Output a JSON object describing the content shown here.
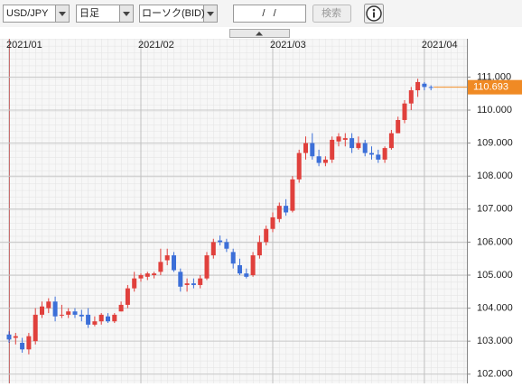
{
  "toolbar": {
    "pair": "USD/JPY",
    "period": "日足",
    "chart_kind": "ローソク(BID)",
    "date": "/   /",
    "search": "検索"
  },
  "chart_data": {
    "type": "candlestick",
    "categories": [
      "2021/01",
      null,
      null,
      null,
      null,
      null,
      null,
      null,
      null,
      null,
      null,
      null,
      null,
      null,
      null,
      null,
      null,
      null,
      null,
      null,
      "2021/02",
      null,
      null,
      null,
      null,
      null,
      null,
      null,
      null,
      null,
      null,
      null,
      null,
      null,
      null,
      null,
      null,
      null,
      null,
      null,
      "2021/03",
      null,
      null,
      null,
      null,
      null,
      null,
      null,
      null,
      null,
      null,
      null,
      null,
      null,
      null,
      null,
      null,
      null,
      null,
      null,
      null,
      null,
      null,
      "2021/04",
      null
    ],
    "open": [
      103.2,
      103.1,
      102.95,
      102.75,
      103.0,
      103.8,
      104.0,
      104.2,
      103.8,
      103.8,
      103.9,
      103.8,
      103.8,
      103.5,
      103.6,
      103.75,
      103.6,
      103.9,
      104.1,
      104.6,
      104.9,
      104.95,
      105.0,
      105.1,
      105.45,
      105.6,
      105.1,
      104.7,
      104.75,
      104.7,
      104.9,
      105.6,
      106.05,
      106.0,
      105.7,
      105.3,
      105.05,
      105.0,
      105.6,
      106.0,
      106.4,
      106.7,
      107.1,
      106.95,
      107.9,
      108.7,
      109.0,
      108.6,
      108.4,
      108.5,
      109.05,
      109.1,
      109.15,
      108.85,
      109.0,
      108.7,
      108.65,
      108.5,
      108.85,
      109.3,
      109.7,
      110.2,
      110.6,
      110.8,
      110.7
    ],
    "high": [
      103.3,
      103.25,
      103.1,
      103.25,
      104.0,
      104.2,
      104.3,
      104.35,
      104.1,
      104.0,
      104.0,
      103.95,
      104.0,
      103.75,
      103.85,
      103.85,
      103.85,
      104.2,
      104.7,
      105.1,
      105.05,
      105.1,
      105.1,
      105.8,
      105.8,
      105.7,
      105.2,
      104.9,
      104.9,
      105.0,
      105.7,
      106.1,
      106.2,
      106.1,
      105.8,
      105.5,
      105.2,
      105.7,
      106.2,
      106.5,
      106.9,
      107.2,
      107.3,
      108.0,
      108.8,
      109.2,
      109.3,
      108.8,
      108.6,
      109.2,
      109.3,
      109.3,
      109.3,
      109.2,
      109.1,
      108.9,
      108.8,
      108.9,
      109.4,
      109.8,
      110.3,
      110.7,
      110.95,
      110.85,
      110.75
    ],
    "low": [
      102.95,
      102.9,
      102.65,
      102.6,
      102.9,
      103.7,
      103.85,
      103.6,
      103.7,
      103.7,
      103.7,
      103.6,
      103.4,
      103.45,
      103.5,
      103.55,
      103.55,
      103.9,
      104.0,
      104.5,
      104.8,
      104.85,
      104.9,
      105.0,
      105.3,
      105.1,
      104.5,
      104.5,
      104.6,
      104.6,
      104.85,
      105.5,
      105.9,
      105.7,
      105.2,
      105.0,
      104.9,
      104.95,
      105.5,
      105.9,
      106.3,
      106.6,
      106.8,
      106.9,
      107.8,
      108.5,
      108.5,
      108.3,
      108.3,
      108.4,
      108.9,
      108.9,
      108.7,
      108.8,
      108.6,
      108.5,
      108.4,
      108.4,
      108.8,
      109.3,
      109.6,
      110.0,
      110.4,
      110.6,
      110.6
    ],
    "close": [
      103.05,
      103.15,
      102.75,
      103.15,
      103.8,
      104.05,
      104.2,
      103.75,
      103.8,
      103.9,
      103.8,
      103.75,
      103.5,
      103.6,
      103.8,
      103.6,
      103.8,
      104.1,
      104.6,
      104.9,
      105.0,
      105.05,
      105.05,
      105.4,
      105.6,
      105.15,
      104.65,
      104.75,
      104.7,
      104.9,
      105.6,
      106.0,
      106.0,
      105.8,
      105.35,
      105.05,
      104.95,
      105.6,
      106.0,
      106.4,
      106.75,
      107.1,
      106.9,
      107.9,
      108.7,
      109.0,
      108.6,
      108.4,
      108.5,
      109.1,
      109.2,
      109.15,
      108.85,
      109.0,
      108.7,
      108.65,
      108.5,
      108.85,
      109.3,
      109.7,
      110.2,
      110.6,
      110.85,
      110.7,
      110.693
    ],
    "up_color": "#e0403c",
    "down_color": "#3c6fd8",
    "last_value": 110.693,
    "last_color": "#f08a24",
    "ylim": [
      101.72,
      112.16
    ],
    "yticks": [
      {
        "value": 102,
        "label": "102.000"
      },
      {
        "value": 103,
        "label": "103.000"
      },
      {
        "value": 104,
        "label": "104.000"
      },
      {
        "value": 105,
        "label": "105.000"
      },
      {
        "value": 106,
        "label": "106.000"
      },
      {
        "value": 107,
        "label": "107.000"
      },
      {
        "value": 108,
        "label": "108.000"
      },
      {
        "value": 109,
        "label": "109.000"
      },
      {
        "value": 110,
        "label": "110.000"
      },
      {
        "value": 111,
        "label": "111.000"
      }
    ],
    "grid": true
  }
}
